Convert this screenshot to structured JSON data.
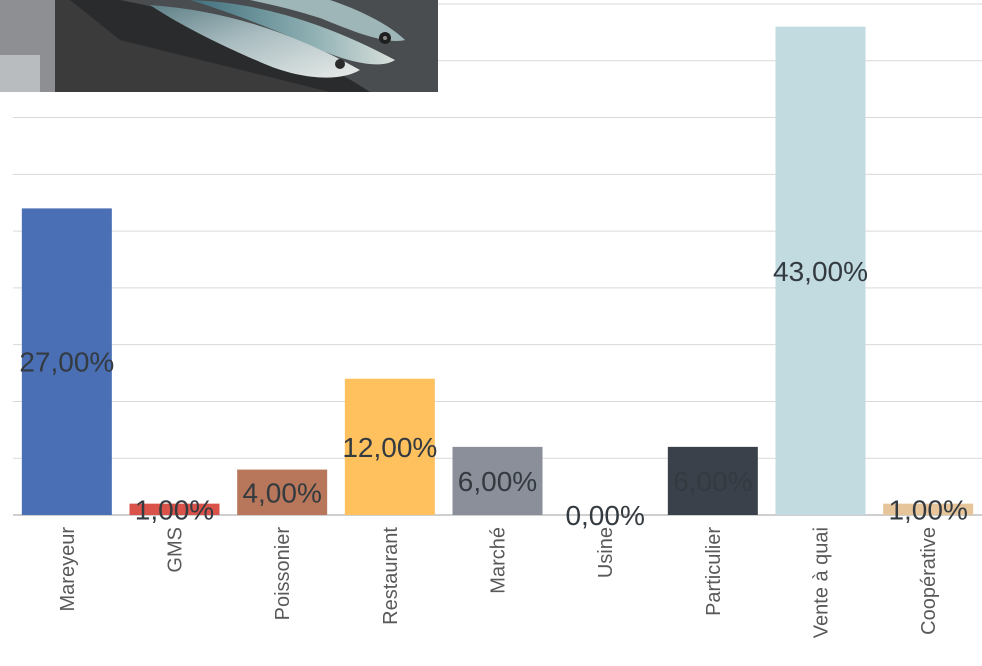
{
  "chart_data": {
    "type": "bar",
    "title": "",
    "xlabel": "",
    "ylabel": "",
    "categories": [
      "Mareyeur",
      "GMS",
      "Poissonier",
      "Restaurant",
      "Marché",
      "Usine",
      "Particulier",
      "Vente à quai",
      "Coopérative"
    ],
    "values": [
      27,
      1,
      4,
      12,
      6,
      0,
      6,
      43,
      1
    ],
    "value_labels": [
      "27,00%",
      "1,00%",
      "4,00%",
      "12,00%",
      "6,00%",
      "0,00%",
      "6,00%",
      "43,00%",
      "1,00%"
    ],
    "colors": [
      "#4a6fb5",
      "#d9534a",
      "#b8775a",
      "#ffc15e",
      "#8a8f99",
      "#aaaaaa",
      "#3b414a",
      "#c2dbe0",
      "#e6c59a"
    ],
    "ylim": [
      0,
      45
    ],
    "grid": true,
    "legend": "none"
  },
  "image": {
    "subject": "fish-in-crate-photo"
  }
}
